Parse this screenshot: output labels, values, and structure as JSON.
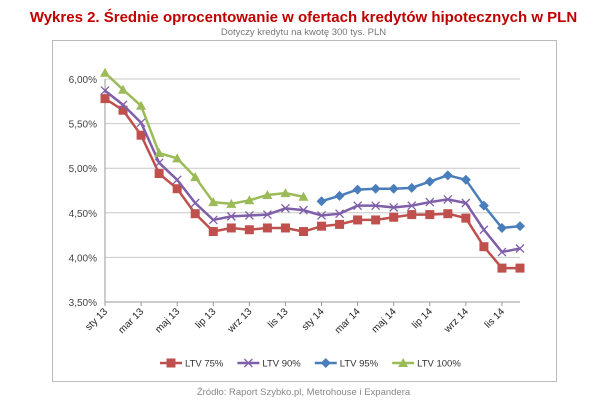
{
  "title": "Wykres 2. Średnie oprocentowanie w ofertach kredytów hipotecznych w PLN",
  "subtitle": "Dotyczy kredytu na kwotę 300 tys. PLN",
  "source": "Źródło: Raport Szybko.pl, Metrohouse i Expandera",
  "chart_data": {
    "type": "line",
    "x": [
      "sty 13",
      "lut 13",
      "mar 13",
      "kwi 13",
      "maj 13",
      "cze 13",
      "lip 13",
      "sie 13",
      "wrz 13",
      "paź 13",
      "lis 13",
      "gru 13",
      "sty 14",
      "lut 14",
      "mar 14",
      "kwi 14",
      "maj 14",
      "cze 14",
      "lip 14",
      "sie 14",
      "wrz 14",
      "paź 14",
      "lis 14",
      "gru 14"
    ],
    "tick_labels": [
      "sty 13",
      "mar 13",
      "maj 13",
      "lip 13",
      "wrz 13",
      "lis 13",
      "sty 14",
      "mar 14",
      "maj 14",
      "lip 14",
      "wrz 14",
      "lis 14"
    ],
    "y_ticks": [
      "3,50%",
      "4,00%",
      "4,50%",
      "5,00%",
      "5,50%",
      "6,00%"
    ],
    "ylim": [
      3.5,
      6.0
    ],
    "grid": true,
    "legend": "bottom",
    "series": [
      {
        "name": "LTV 75%",
        "color": "#c0504d",
        "marker": "square",
        "values": [
          5.78,
          5.65,
          5.37,
          4.94,
          4.77,
          4.49,
          4.29,
          4.33,
          4.31,
          4.33,
          4.33,
          4.29,
          4.35,
          4.37,
          4.42,
          4.42,
          4.45,
          4.48,
          4.48,
          4.49,
          4.44,
          4.12,
          3.88,
          3.88
        ]
      },
      {
        "name": "LTV 90%",
        "color": "#7f5fa8",
        "marker": "x",
        "values": [
          5.87,
          5.71,
          5.51,
          5.06,
          4.87,
          4.61,
          4.42,
          4.46,
          4.47,
          4.48,
          4.55,
          4.53,
          4.47,
          4.49,
          4.58,
          4.58,
          4.56,
          4.58,
          4.62,
          4.65,
          4.61,
          4.31,
          4.06,
          4.1
        ]
      },
      {
        "name": "LTV 95%",
        "color": "#4a7ebb",
        "marker": "diamond",
        "values": [
          null,
          null,
          null,
          null,
          null,
          null,
          null,
          null,
          null,
          null,
          null,
          null,
          4.63,
          4.69,
          4.76,
          4.77,
          4.77,
          4.78,
          4.85,
          4.92,
          4.87,
          4.58,
          4.33,
          4.35
        ]
      },
      {
        "name": "LTV 100%",
        "color": "#9bbb59",
        "marker": "triangle",
        "values": [
          6.07,
          5.88,
          5.7,
          5.17,
          5.11,
          4.9,
          4.62,
          4.6,
          4.64,
          4.7,
          4.72,
          4.68,
          null,
          null,
          null,
          null,
          null,
          null,
          null,
          null,
          null,
          null,
          null,
          null
        ]
      }
    ]
  }
}
